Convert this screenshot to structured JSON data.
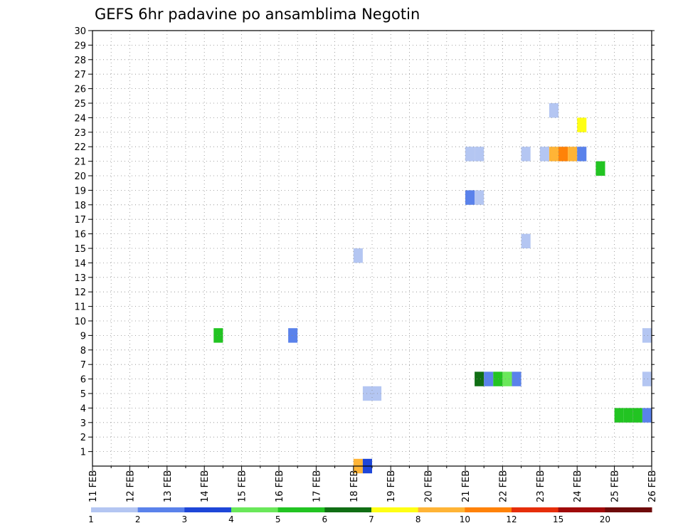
{
  "chart_data": {
    "type": "heatmap",
    "title": "GEFS 6hr padavine po ansamblima Negotin",
    "xlabel": "",
    "ylabel": "",
    "x_tick_labels": [
      "11 FEB",
      "12 FEB",
      "13 FEB",
      "14 FEB",
      "15 FEB",
      "16 FEB",
      "17 FEB",
      "18 FEB",
      "19 FEB",
      "20 FEB",
      "21 FEB",
      "22 FEB",
      "23 FEB",
      "24 FEB",
      "25 FEB",
      "26 FEB"
    ],
    "xlim_days": [
      11,
      26
    ],
    "ylim": [
      0,
      30
    ],
    "y_ticks": [
      1,
      2,
      3,
      4,
      5,
      6,
      7,
      8,
      9,
      10,
      11,
      12,
      13,
      14,
      15,
      16,
      17,
      18,
      19,
      20,
      21,
      22,
      23,
      24,
      25,
      26,
      27,
      28,
      29,
      30
    ],
    "grid": true,
    "colorbar": {
      "placement": "bottom",
      "boundaries": [
        1,
        2,
        3,
        4,
        5,
        6,
        7,
        8,
        10,
        12,
        15,
        20
      ],
      "colors": [
        "#b4c6f2",
        "#5a82eb",
        "#1e46d8",
        "#6ae85a",
        "#22c422",
        "#106e14",
        "#ffff14",
        "#ffb436",
        "#ff8208",
        "#e62e0a",
        "#a00a0a",
        "#6e0a0a"
      ]
    },
    "cells": [
      {
        "day": 14.25,
        "member": 9,
        "value": 5
      },
      {
        "day": 16.25,
        "member": 9,
        "value": 2
      },
      {
        "day": 18.0,
        "member": 14.5,
        "value": 1
      },
      {
        "day": 18.25,
        "member": 5,
        "value": 1
      },
      {
        "day": 18.5,
        "member": 5,
        "value": 1
      },
      {
        "day": 18.0,
        "member": 0,
        "value": 8
      },
      {
        "day": 18.25,
        "member": 0,
        "value": 3
      },
      {
        "day": 21.0,
        "member": 21.5,
        "value": 1
      },
      {
        "day": 21.25,
        "member": 21.5,
        "value": 1
      },
      {
        "day": 21.0,
        "member": 18.5,
        "value": 2
      },
      {
        "day": 21.25,
        "member": 18.5,
        "value": 1
      },
      {
        "day": 21.25,
        "member": 6,
        "value": 6
      },
      {
        "day": 21.5,
        "member": 6,
        "value": 2
      },
      {
        "day": 21.75,
        "member": 6,
        "value": 5
      },
      {
        "day": 22.0,
        "member": 6,
        "value": 4
      },
      {
        "day": 22.25,
        "member": 6,
        "value": 2
      },
      {
        "day": 22.5,
        "member": 15.5,
        "value": 1
      },
      {
        "day": 22.5,
        "member": 21.5,
        "value": 1
      },
      {
        "day": 23.0,
        "member": 21.5,
        "value": 1
      },
      {
        "day": 23.25,
        "member": 21.5,
        "value": 8
      },
      {
        "day": 23.5,
        "member": 21.5,
        "value": 10
      },
      {
        "day": 23.75,
        "member": 21.5,
        "value": 8
      },
      {
        "day": 24.0,
        "member": 21.5,
        "value": 2
      },
      {
        "day": 23.25,
        "member": 24.5,
        "value": 1
      },
      {
        "day": 24.0,
        "member": 23.5,
        "value": 7
      },
      {
        "day": 24.5,
        "member": 20.5,
        "value": 5
      },
      {
        "day": 25.0,
        "member": 3.5,
        "value": 5
      },
      {
        "day": 25.25,
        "member": 3.5,
        "value": 5
      },
      {
        "day": 25.5,
        "member": 3.5,
        "value": 5
      },
      {
        "day": 25.75,
        "member": 3.5,
        "value": 2
      },
      {
        "day": 25.75,
        "member": 9,
        "value": 1
      },
      {
        "day": 25.75,
        "member": 6,
        "value": 1
      }
    ]
  }
}
